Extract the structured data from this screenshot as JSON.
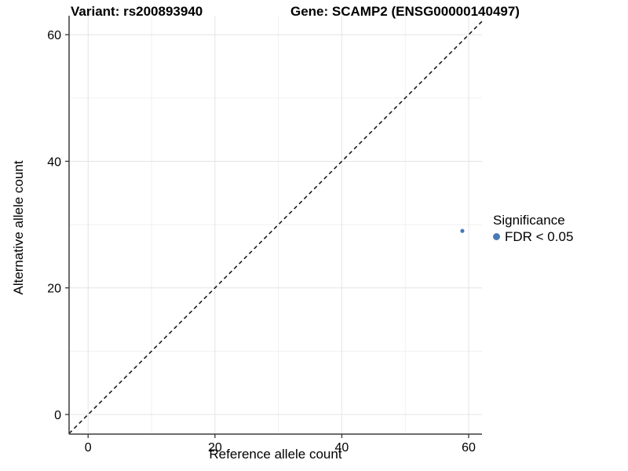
{
  "figure": {
    "title_left": "Variant: rs200893940",
    "title_right": "Gene: SCAMP2 (ENSG00000140497)"
  },
  "chart_data": {
    "type": "scatter",
    "title": "Variant: rs200893940   Gene: SCAMP2 (ENSG00000140497)",
    "xlabel": "Reference allele count",
    "ylabel": "Alternative allele count",
    "xlim": [
      -3,
      62.1
    ],
    "ylim": [
      -3.1,
      63
    ],
    "x_ticks": [
      0,
      20,
      40,
      60
    ],
    "y_ticks": [
      0,
      20,
      40,
      60
    ],
    "x_minor_ticks": [
      10,
      30,
      50
    ],
    "y_minor_ticks": [
      10,
      30,
      50
    ],
    "grid": true,
    "series": [
      {
        "name": "FDR < 0.05",
        "points": [
          {
            "x": 59,
            "y": 29
          }
        ],
        "color": "#4a7ab5",
        "marker": "circle",
        "marker_radius": 2.6
      }
    ],
    "reference_line": {
      "kind": "identity",
      "equation": "y = x",
      "style": "dashed",
      "color": "#1a1a1a"
    },
    "legend": {
      "title": "Significance",
      "position": "right",
      "entries": [
        {
          "label": "FDR < 0.05",
          "color": "#4a7ab5",
          "marker": "circle"
        }
      ]
    }
  },
  "colors": {
    "background": "#ffffff",
    "grid_major": "#e4e4e4",
    "grid_minor": "#f0f0f0",
    "axis_line": "#3c3c3c",
    "tick_mark": "#333333",
    "tick_text": "#000000",
    "point": "#4a7ab5",
    "reference_line": "#1a1a1a"
  }
}
